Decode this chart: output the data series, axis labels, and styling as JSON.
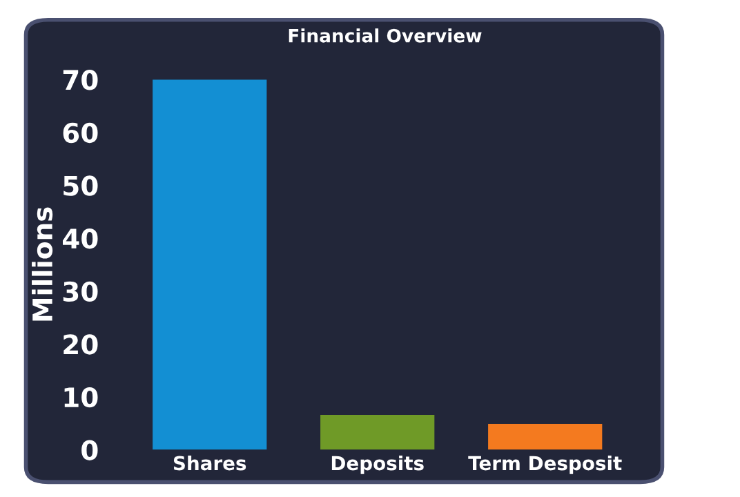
{
  "chart_data": {
    "type": "bar",
    "title": "Financial Overview",
    "ylabel": "Millions",
    "categories": [
      "Shares",
      "Deposits",
      "Term Desposit"
    ],
    "values": [
      70,
      6.6,
      4.9
    ],
    "colors": [
      "#138fd3",
      "#6f9a27",
      "#f47a1f"
    ],
    "ylim": [
      0,
      70
    ],
    "yticks": [
      0,
      10,
      20,
      30,
      40,
      50,
      60,
      70
    ],
    "grid": false,
    "legend": false
  }
}
